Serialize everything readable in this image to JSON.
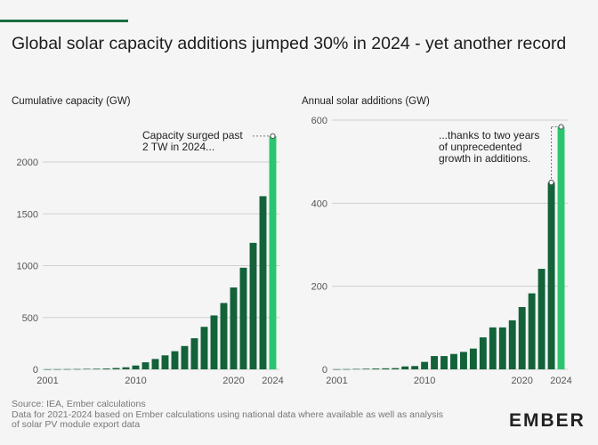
{
  "title": "Global solar capacity additions jumped 30% in 2024 - yet another record",
  "chart_data": [
    {
      "type": "bar",
      "ylabel": "Cumulative capacity (GW)",
      "years": [
        2001,
        2002,
        2003,
        2004,
        2005,
        2006,
        2007,
        2008,
        2009,
        2010,
        2011,
        2012,
        2013,
        2014,
        2015,
        2016,
        2017,
        2018,
        2019,
        2020,
        2021,
        2022,
        2023,
        2024
      ],
      "values": [
        1,
        1.5,
        2,
        3,
        5,
        6,
        8,
        13,
        20,
        37,
        68,
        100,
        135,
        175,
        225,
        300,
        410,
        520,
        640,
        790,
        980,
        1220,
        1670,
        2250
      ],
      "ylim": [
        0,
        2400
      ],
      "yticks": [
        0,
        500,
        1000,
        1500,
        2000
      ],
      "xticks": [
        2001,
        2010,
        2020,
        2024
      ],
      "highlight_year": 2024,
      "annotation": [
        "Capacity surged past",
        "2 TW in 2024..."
      ]
    },
    {
      "type": "bar",
      "ylabel": "Annual solar additions (GW)",
      "years": [
        2001,
        2002,
        2003,
        2004,
        2005,
        2006,
        2007,
        2008,
        2009,
        2010,
        2011,
        2012,
        2013,
        2014,
        2015,
        2016,
        2017,
        2018,
        2019,
        2020,
        2021,
        2022,
        2023,
        2024
      ],
      "values": [
        0.3,
        0.5,
        1,
        1.5,
        2,
        2.5,
        3,
        7,
        8,
        18,
        32,
        32,
        37,
        42,
        50,
        77,
        101,
        101,
        118,
        150,
        183,
        242,
        450,
        584
      ],
      "ylim": [
        0,
        630
      ],
      "yticks": [
        0,
        200,
        400,
        600
      ],
      "xticks": [
        2001,
        2010,
        2020,
        2024
      ],
      "highlight_year": 2024,
      "annotation": [
        "...thanks to two years",
        "of unprecedented",
        "growth in additions."
      ]
    }
  ],
  "footer": {
    "source": "Source: IEA, Ember calculations",
    "note_line1": "Data for 2021-2024 based on Ember calculations using national data where available as well as analysis",
    "note_line2": "of solar PV module export data"
  },
  "logo": "EMBER",
  "colors": {
    "bar": "#136239",
    "highlight": "#2bc46f",
    "grid": "#cfcfcf"
  }
}
